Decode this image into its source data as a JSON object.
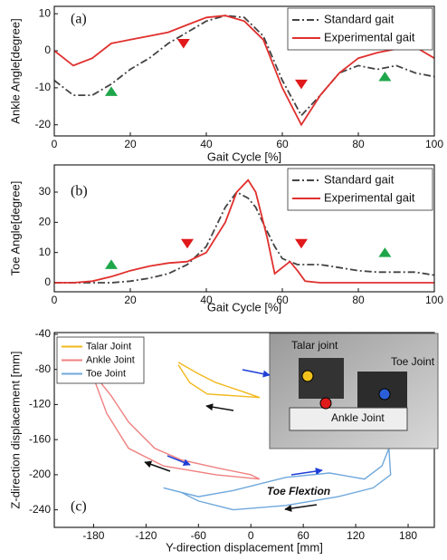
{
  "chart_data": [
    {
      "type": "line",
      "panel_label": "(a)",
      "x_label": "Gait Cycle [%]",
      "y_label": "Ankle Angle[degree]",
      "x": [
        0,
        5,
        10,
        15,
        20,
        25,
        30,
        35,
        40,
        45,
        50,
        55,
        60,
        65,
        70,
        75,
        80,
        85,
        90,
        95,
        100
      ],
      "series": [
        {
          "name": "Standard gait",
          "color": "#444444",
          "linestyle": "dashdot",
          "values": [
            -8,
            -12,
            -12,
            -9,
            -5,
            -2,
            2,
            5,
            8,
            9.5,
            9,
            4,
            -8,
            -17.5,
            -12,
            -6,
            -4,
            -5,
            -4,
            -6,
            -7
          ]
        },
        {
          "name": "Experimental gait",
          "color": "#e0302e",
          "linestyle": "solid",
          "values": [
            0,
            -4,
            -2,
            2,
            3,
            4,
            5,
            7,
            9,
            9.5,
            8,
            3,
            -10,
            -20,
            -12,
            -6,
            -2,
            -0.5,
            0.5,
            1,
            -2
          ]
        }
      ],
      "markers": [
        {
          "x": 15,
          "y": -11,
          "color": "#1fa64a",
          "shape": "up"
        },
        {
          "x": 34,
          "y": 2,
          "color": "#e0191b",
          "shape": "down"
        },
        {
          "x": 65,
          "y": -9,
          "color": "#e0191b",
          "shape": "down"
        },
        {
          "x": 87,
          "y": -7,
          "color": "#1fa64a",
          "shape": "up"
        }
      ],
      "xlim": [
        0,
        100
      ],
      "xticks": [
        0,
        20,
        40,
        60,
        80,
        100
      ],
      "ylim": [
        -23,
        12
      ],
      "yticks": [
        -20,
        -10,
        0,
        10
      ]
    },
    {
      "type": "line",
      "panel_label": "(b)",
      "x_label": "Gait Cycle [%]",
      "y_label": "Toe Angle[degree]",
      "x": [
        0,
        5,
        10,
        15,
        20,
        25,
        30,
        35,
        40,
        45,
        48,
        51,
        53,
        56,
        58,
        60,
        62,
        64,
        66,
        70,
        75,
        80,
        85,
        90,
        95,
        100
      ],
      "series": [
        {
          "name": "Standard gait",
          "color": "#444444",
          "linestyle": "dashdot",
          "values": [
            0,
            0,
            0,
            0,
            0.5,
            1.5,
            3,
            6,
            12,
            25,
            30,
            28,
            25,
            17,
            12,
            8,
            7,
            6,
            6,
            6,
            5,
            4,
            3.5,
            3.5,
            3.5,
            2.5
          ]
        },
        {
          "name": "Experimental gait",
          "color": "#e0302e",
          "linestyle": "solid",
          "values": [
            0,
            0,
            0.5,
            2,
            4,
            5.5,
            6.5,
            7,
            10,
            20,
            30,
            34,
            30,
            15,
            3,
            5,
            7,
            4,
            0.5,
            0,
            0,
            0,
            0,
            0,
            0,
            0
          ]
        }
      ],
      "markers": [
        {
          "x": 15,
          "y": 6,
          "color": "#1fa64a",
          "shape": "up"
        },
        {
          "x": 35,
          "y": 13,
          "color": "#e0191b",
          "shape": "down"
        },
        {
          "x": 65,
          "y": 13,
          "color": "#e0191b",
          "shape": "down"
        },
        {
          "x": 87,
          "y": 10,
          "color": "#1fa64a",
          "shape": "up"
        }
      ],
      "xlim": [
        0,
        100
      ],
      "xticks": [
        0,
        20,
        40,
        60,
        80,
        100
      ],
      "ylim": [
        -3,
        39
      ],
      "yticks": [
        0,
        10,
        20,
        30
      ]
    },
    {
      "type": "line",
      "panel_label": "(c)",
      "x_label": "Y-direction displacement [mm]",
      "y_label": "Z-direction displacement [mm]",
      "annotation": "Toe Flextion",
      "series": [
        {
          "name": "Talar Joint",
          "color": "#f2b81c",
          "linestyle": "solid",
          "x": [
            -83,
            -60,
            -40,
            -10,
            10,
            -20,
            -50,
            -70,
            -83
          ],
          "values": [
            -72,
            -85,
            -95,
            -105,
            -112,
            -110,
            -108,
            -95,
            -75
          ]
        },
        {
          "name": "Ankle Joint",
          "color": "#f08080",
          "linestyle": "solid",
          "x": [
            -180,
            -160,
            -140,
            -110,
            -80,
            -40,
            0,
            10,
            -40,
            -100,
            -140,
            -165,
            -178
          ],
          "values": [
            -85,
            -110,
            -140,
            -170,
            -183,
            -192,
            -200,
            -205,
            -200,
            -190,
            -170,
            -130,
            -95
          ]
        },
        {
          "name": "Toe Joint",
          "color": "#6fa8dc",
          "linestyle": "solid",
          "x": [
            -100,
            -60,
            -20,
            40,
            90,
            130,
            150,
            158,
            160,
            140,
            100,
            40,
            -20,
            -60,
            -80,
            -100
          ],
          "values": [
            -215,
            -225,
            -218,
            -203,
            -198,
            -205,
            -190,
            -170,
            -200,
            -215,
            -225,
            -235,
            -240,
            -230,
            -220,
            -215
          ]
        }
      ],
      "xlim": [
        -225,
        210
      ],
      "xticks": [
        -180,
        -120,
        -60,
        0,
        60,
        120,
        180
      ],
      "ylim": [
        -260,
        -38
      ],
      "yticks": [
        -240,
        -200,
        -160,
        -120,
        -80,
        -40
      ]
    }
  ],
  "inset": {
    "labels": [
      "Talar joint",
      "Toe Joint",
      "Ankle Joint"
    ]
  }
}
